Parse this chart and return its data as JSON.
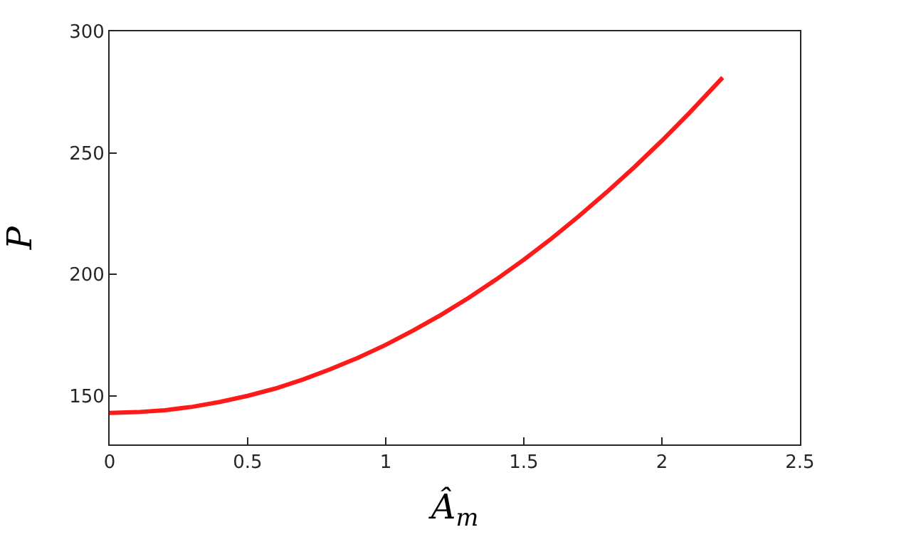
{
  "chart_data": {
    "type": "line",
    "xlabel": "Â$_{m}$",
    "ylabel": "P",
    "x": [
      0,
      0.1,
      0.2,
      0.3,
      0.4,
      0.5,
      0.6,
      0.7,
      0.8,
      0.9,
      1.0,
      1.1,
      1.2,
      1.3,
      1.4,
      1.5,
      1.6,
      1.7,
      1.8,
      1.9,
      2.0,
      2.1,
      2.22
    ],
    "series": [
      {
        "color": "#ff1a1a",
        "values": [
          143,
          143.3,
          144.1,
          145.5,
          147.5,
          150,
          153,
          156.7,
          161,
          165.7,
          171,
          176.9,
          183.3,
          190.3,
          197.9,
          206,
          214.7,
          224,
          233.8,
          244.1,
          255,
          266.5,
          281
        ]
      }
    ],
    "xlim": [
      0,
      2.5
    ],
    "xticks": [
      0,
      0.5,
      1,
      1.5,
      2,
      2.5
    ],
    "ylim": [
      130,
      300
    ],
    "yticks": [
      150,
      200,
      250,
      300
    ],
    "marker": "none",
    "line_style": "solid"
  }
}
